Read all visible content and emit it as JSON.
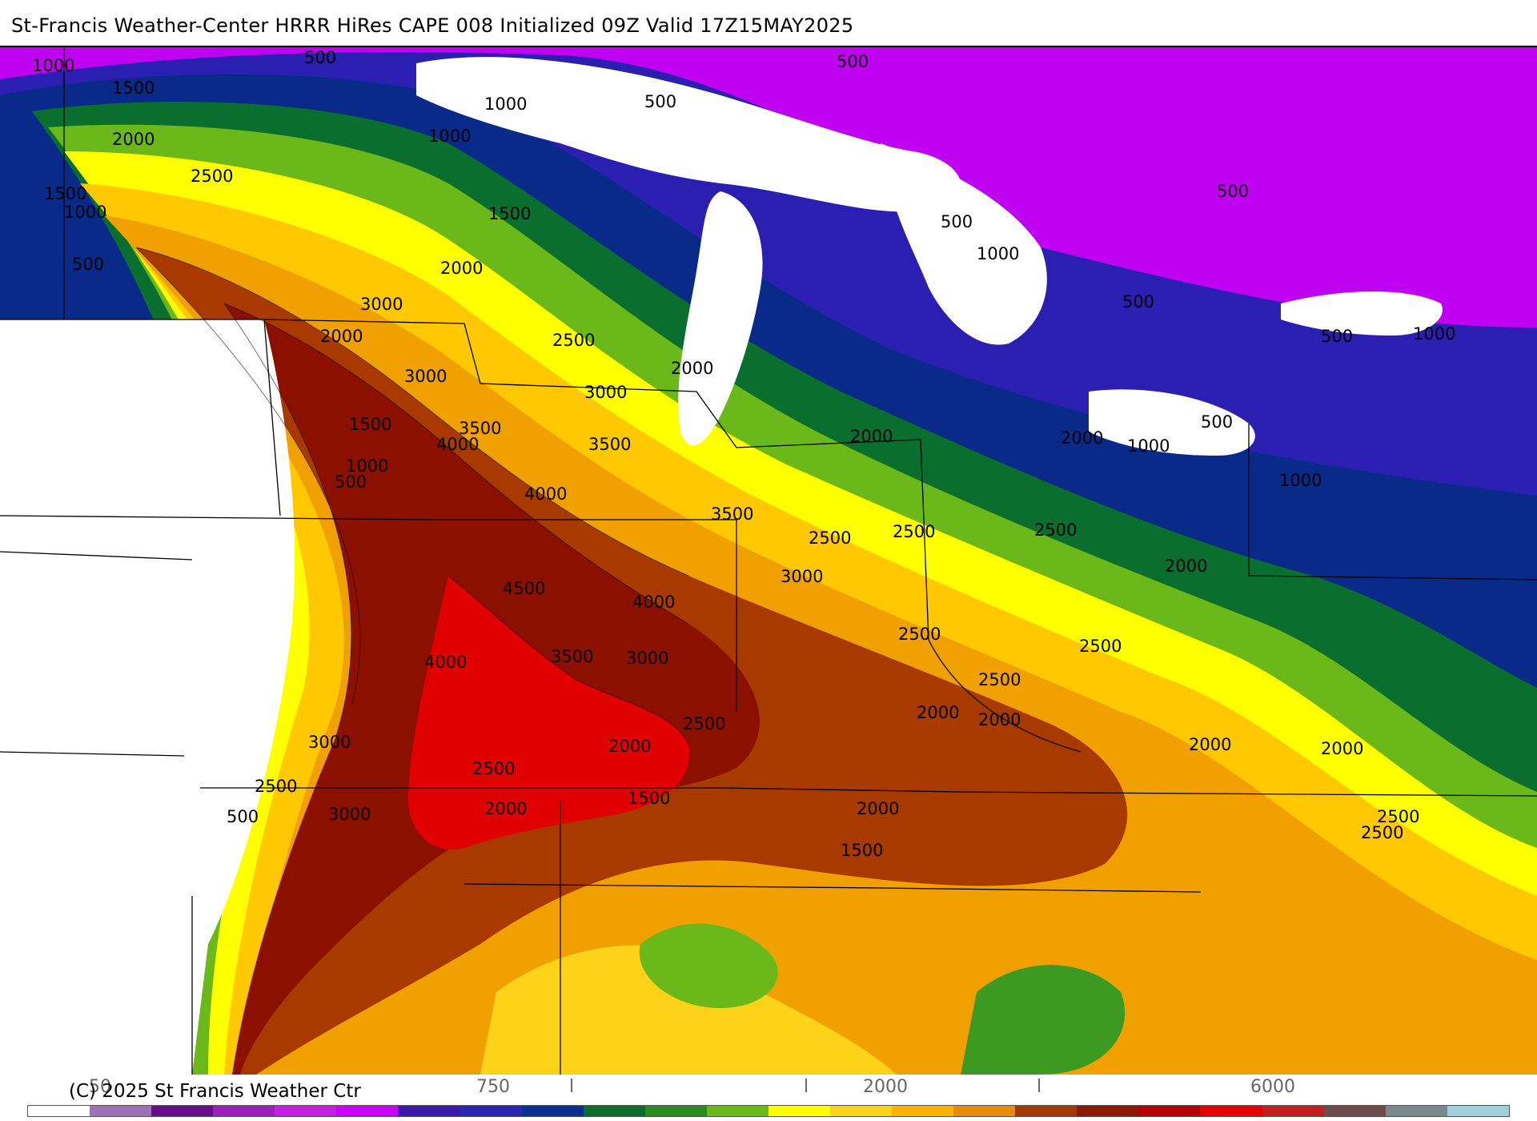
{
  "header": {
    "title": "St-Francis Weather-Center HRRR HiRes CAPE  008 Initialized  09Z Valid 17Z15MAY2025"
  },
  "footer": {
    "copyright": "(C) 2025 St Francis Weather Ctr"
  },
  "colorbar": {
    "colors": [
      "#ffffff",
      "#9b72b8",
      "#6a0a8c",
      "#9b1fb8",
      "#c41fe0",
      "#cc00ff",
      "#3a1aa8",
      "#2a23b3",
      "#0a2f8c",
      "#0a6e2e",
      "#2a8c1a",
      "#6bb81a",
      "#ffff00",
      "#ffd21a",
      "#ffb300",
      "#e88a0a",
      "#a33a00",
      "#8c1a00",
      "#b30000",
      "#e60000",
      "#c02020",
      "#6e4a4a",
      "#7a8a8c",
      "#a0d0dc"
    ],
    "tick_labels": [
      "50",
      "750",
      "l",
      "l",
      "2000",
      "l",
      "6000"
    ]
  },
  "map": {
    "contour_labels": [
      "500",
      "1000",
      "1500",
      "2000",
      "2500",
      "3000",
      "3500",
      "4000",
      "4500"
    ]
  }
}
